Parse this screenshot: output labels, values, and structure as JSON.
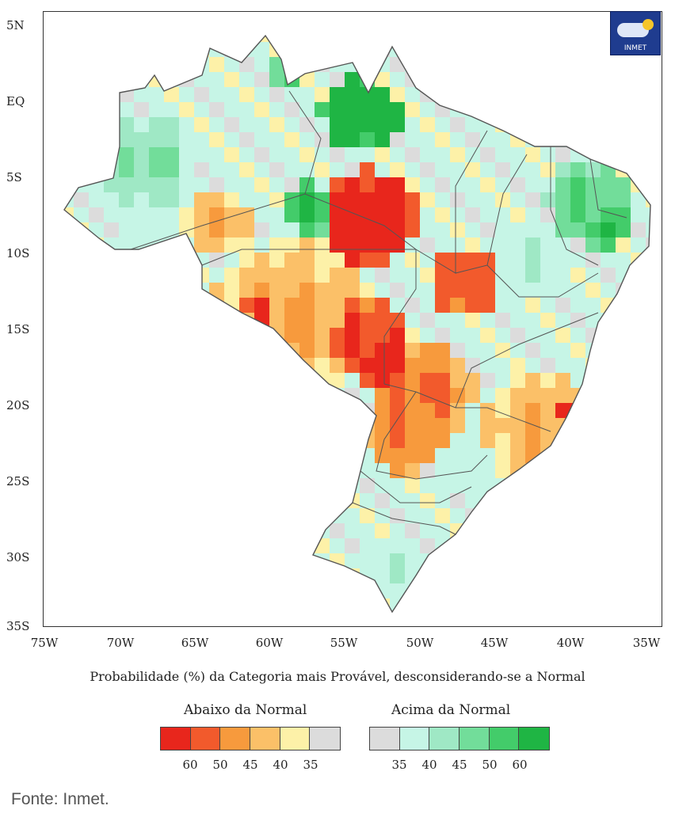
{
  "lat_labels": [
    "5N",
    "EQ",
    "5S",
    "10S",
    "15S",
    "20S",
    "25S",
    "30S",
    "35S"
  ],
  "lon_labels": [
    "75W",
    "70W",
    "65W",
    "60W",
    "55W",
    "50W",
    "45W",
    "40W",
    "35W"
  ],
  "caption": "Probabilidade (%) da Categoria mais Provável, desconsiderando-se a Normal",
  "legend": {
    "below_title": "Abaixo da Normal",
    "above_title": "Acima da Normal",
    "below_colors": [
      "#e8261c",
      "#f25a2c",
      "#f79a3d",
      "#fbc068",
      "#fdf1a8",
      "#dcdcdc"
    ],
    "above_colors": [
      "#dcdcdc",
      "#c6f5e6",
      "#9fe8c5",
      "#72dd9a",
      "#43cc6a",
      "#1fb544"
    ],
    "below_ticks": [
      "60",
      "50",
      "45",
      "40",
      "35"
    ],
    "above_ticks": [
      "35",
      "40",
      "45",
      "50",
      "60"
    ]
  },
  "logo_text": "INMET",
  "source": "Fonte: Inmet."
}
